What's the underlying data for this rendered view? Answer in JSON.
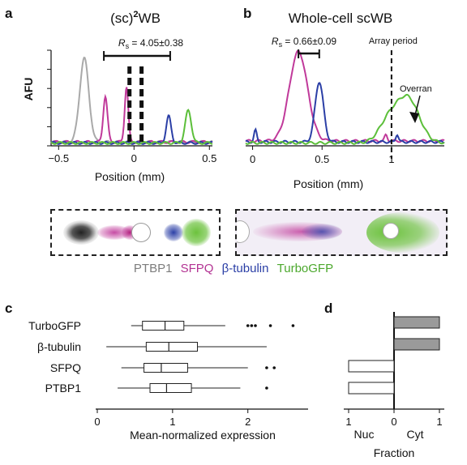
{
  "panels": {
    "a": "a",
    "b": "b",
    "c": "c",
    "d": "d"
  },
  "colors": {
    "PTBP1": "#a9a9a9",
    "SFPQ": "#c0399a",
    "beta_tubulin": "#2b3fa6",
    "TurboGFP": "#5cbf3a",
    "bar_fill": "#9a9a9a"
  },
  "legend": [
    "PTBP1",
    "SFPQ",
    "β-tubulin",
    "TurboGFP"
  ],
  "chart_data": [
    {
      "id": "a",
      "type": "line",
      "title": "(sc)²WB",
      "title_parts": {
        "main": "(sc)",
        "sup": "2",
        "tail": "WB"
      },
      "xlabel": "Position (mm)",
      "ylabel": "AFU",
      "xlim": [
        -0.55,
        0.52
      ],
      "ylim": [
        0,
        1.0
      ],
      "xticks": [
        -0.5,
        0,
        0.5
      ],
      "xtick_labels": [
        "−0.5",
        "0",
        "0.5"
      ],
      "annotation": {
        "label_pre": "R",
        "label_sub": "s",
        "label_post": " = 4.05±0.38",
        "x_start": -0.2,
        "x_end": 0.24
      },
      "dashed_lines_x": [
        -0.03,
        0.05
      ],
      "series": [
        {
          "key": "PTBP1",
          "peaks": [
            [
              -0.33,
              0.88,
              0.03
            ]
          ],
          "base": 0.04
        },
        {
          "key": "SFPQ",
          "peaks": [
            [
              -0.19,
              0.48,
              0.014
            ],
            [
              -0.05,
              0.58,
              0.012
            ]
          ],
          "base": 0.04
        },
        {
          "key": "beta_tubulin",
          "peaks": [
            [
              0.23,
              0.28,
              0.016
            ]
          ],
          "base": 0.03
        },
        {
          "key": "TurboGFP",
          "peaks": [
            [
              0.36,
              0.34,
              0.02
            ]
          ],
          "base": 0.03
        }
      ]
    },
    {
      "id": "b",
      "type": "line",
      "title": "Whole-cell scWB",
      "xlabel": "Position (mm)",
      "xlim": [
        -0.05,
        1.38
      ],
      "ylim": [
        0,
        1.0
      ],
      "xticks": [
        0,
        0.5,
        1
      ],
      "xtick_labels": [
        "0",
        "0.5",
        "1"
      ],
      "annotation": {
        "label_pre": "R",
        "label_sub": "s",
        "label_post": " = 0.66±0.09",
        "x_start": 0.33,
        "x_end": 0.48
      },
      "dashed_line": {
        "x": 1.0,
        "label": "Array period"
      },
      "arrow_label": "Overran",
      "series": [
        {
          "key": "SFPQ",
          "peaks": [
            [
              0.33,
              0.92,
              0.065
            ],
            [
              0.96,
              0.06,
              0.01
            ]
          ],
          "base": 0.05
        },
        {
          "key": "beta_tubulin",
          "peaks": [
            [
              0.48,
              0.62,
              0.03
            ],
            [
              0.02,
              0.12,
              0.01
            ],
            [
              1.04,
              0.08,
              0.01
            ]
          ],
          "base": 0.04
        },
        {
          "key": "TurboGFP",
          "peaks": [
            [
              0.98,
              0.22,
              0.07
            ],
            [
              1.12,
              0.45,
              0.08
            ]
          ],
          "base": 0.03
        }
      ]
    },
    {
      "id": "c",
      "type": "box",
      "xlabel": "Mean-normalized expression",
      "xlim": [
        0,
        2.8
      ],
      "xticks": [
        0,
        1,
        2
      ],
      "xtick_labels": [
        "0",
        "1",
        "2"
      ],
      "categories": [
        "TurboGFP",
        "β-tubulin",
        "SFPQ",
        "PTBP1"
      ],
      "boxes": [
        {
          "min": 0.45,
          "q1": 0.6,
          "median": 0.9,
          "q3": 1.15,
          "max": 1.7,
          "outliers": [
            2.0,
            2.05,
            2.1,
            2.3,
            2.6
          ]
        },
        {
          "min": 0.12,
          "q1": 0.65,
          "median": 0.95,
          "q3": 1.33,
          "max": 2.25,
          "outliers": []
        },
        {
          "min": 0.32,
          "q1": 0.62,
          "median": 0.85,
          "q3": 1.2,
          "max": 2.0,
          "outliers": [
            2.25,
            2.35
          ]
        },
        {
          "min": 0.27,
          "q1": 0.7,
          "median": 0.92,
          "q3": 1.25,
          "max": 1.9,
          "outliers": [
            2.25
          ]
        }
      ]
    },
    {
      "id": "d",
      "type": "bar",
      "xlabel": "Fraction",
      "left_label": "Nuc",
      "right_label": "Cyt",
      "xticks_labels": [
        "1",
        "0",
        "1"
      ],
      "values_cyt": [
        1,
        1,
        0,
        0
      ],
      "values_nuc": [
        0,
        0,
        1,
        1
      ]
    }
  ]
}
